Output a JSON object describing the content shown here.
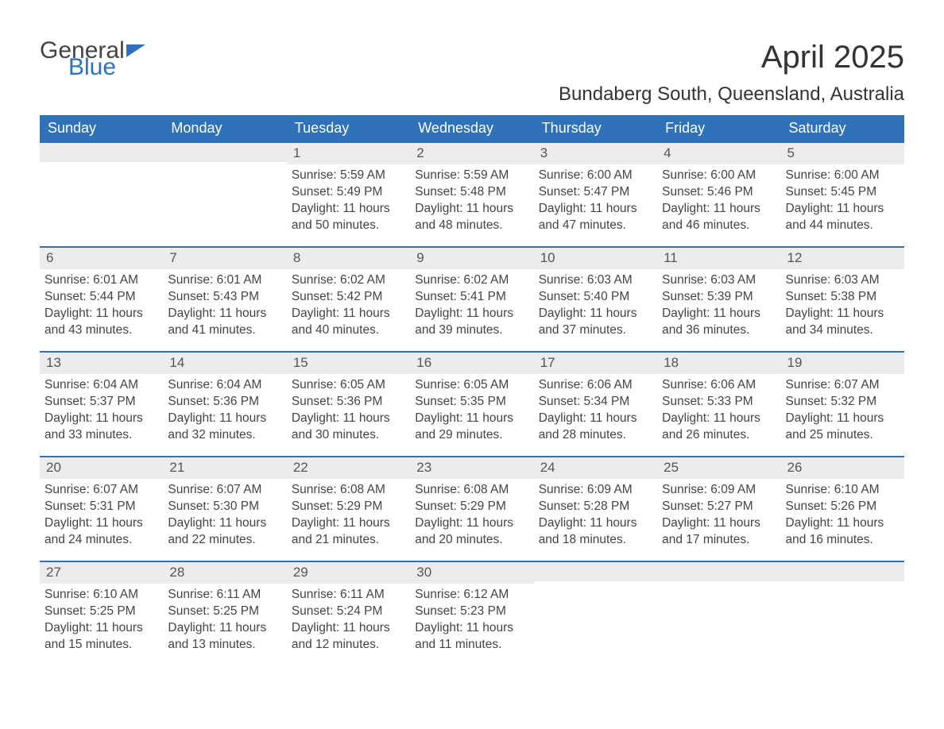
{
  "logo": {
    "text1": "General",
    "text2": "Blue"
  },
  "title": "April 2025",
  "location": "Bundaberg South, Queensland, Australia",
  "colors": {
    "header_bg": "#2f72b9",
    "header_fg": "#ffffff",
    "daynum_bg": "#ececec",
    "text": "#444444",
    "row_border": "#2f72b9",
    "page_bg": "#ffffff",
    "logo_blue": "#2f72b9"
  },
  "typography": {
    "title_fontsize_pt": 30,
    "location_fontsize_pt": 18,
    "weekday_fontsize_pt": 14,
    "body_fontsize_pt": 12,
    "daynum_fontsize_pt": 13
  },
  "weekdays": [
    "Sunday",
    "Monday",
    "Tuesday",
    "Wednesday",
    "Thursday",
    "Friday",
    "Saturday"
  ],
  "weeks": [
    [
      {
        "day": "",
        "sunrise": "",
        "sunset": "",
        "daylight": ""
      },
      {
        "day": "",
        "sunrise": "",
        "sunset": "",
        "daylight": ""
      },
      {
        "day": "1",
        "sunrise": "Sunrise: 5:59 AM",
        "sunset": "Sunset: 5:49 PM",
        "daylight": "Daylight: 11 hours and 50 minutes."
      },
      {
        "day": "2",
        "sunrise": "Sunrise: 5:59 AM",
        "sunset": "Sunset: 5:48 PM",
        "daylight": "Daylight: 11 hours and 48 minutes."
      },
      {
        "day": "3",
        "sunrise": "Sunrise: 6:00 AM",
        "sunset": "Sunset: 5:47 PM",
        "daylight": "Daylight: 11 hours and 47 minutes."
      },
      {
        "day": "4",
        "sunrise": "Sunrise: 6:00 AM",
        "sunset": "Sunset: 5:46 PM",
        "daylight": "Daylight: 11 hours and 46 minutes."
      },
      {
        "day": "5",
        "sunrise": "Sunrise: 6:00 AM",
        "sunset": "Sunset: 5:45 PM",
        "daylight": "Daylight: 11 hours and 44 minutes."
      }
    ],
    [
      {
        "day": "6",
        "sunrise": "Sunrise: 6:01 AM",
        "sunset": "Sunset: 5:44 PM",
        "daylight": "Daylight: 11 hours and 43 minutes."
      },
      {
        "day": "7",
        "sunrise": "Sunrise: 6:01 AM",
        "sunset": "Sunset: 5:43 PM",
        "daylight": "Daylight: 11 hours and 41 minutes."
      },
      {
        "day": "8",
        "sunrise": "Sunrise: 6:02 AM",
        "sunset": "Sunset: 5:42 PM",
        "daylight": "Daylight: 11 hours and 40 minutes."
      },
      {
        "day": "9",
        "sunrise": "Sunrise: 6:02 AM",
        "sunset": "Sunset: 5:41 PM",
        "daylight": "Daylight: 11 hours and 39 minutes."
      },
      {
        "day": "10",
        "sunrise": "Sunrise: 6:03 AM",
        "sunset": "Sunset: 5:40 PM",
        "daylight": "Daylight: 11 hours and 37 minutes."
      },
      {
        "day": "11",
        "sunrise": "Sunrise: 6:03 AM",
        "sunset": "Sunset: 5:39 PM",
        "daylight": "Daylight: 11 hours and 36 minutes."
      },
      {
        "day": "12",
        "sunrise": "Sunrise: 6:03 AM",
        "sunset": "Sunset: 5:38 PM",
        "daylight": "Daylight: 11 hours and 34 minutes."
      }
    ],
    [
      {
        "day": "13",
        "sunrise": "Sunrise: 6:04 AM",
        "sunset": "Sunset: 5:37 PM",
        "daylight": "Daylight: 11 hours and 33 minutes."
      },
      {
        "day": "14",
        "sunrise": "Sunrise: 6:04 AM",
        "sunset": "Sunset: 5:36 PM",
        "daylight": "Daylight: 11 hours and 32 minutes."
      },
      {
        "day": "15",
        "sunrise": "Sunrise: 6:05 AM",
        "sunset": "Sunset: 5:36 PM",
        "daylight": "Daylight: 11 hours and 30 minutes."
      },
      {
        "day": "16",
        "sunrise": "Sunrise: 6:05 AM",
        "sunset": "Sunset: 5:35 PM",
        "daylight": "Daylight: 11 hours and 29 minutes."
      },
      {
        "day": "17",
        "sunrise": "Sunrise: 6:06 AM",
        "sunset": "Sunset: 5:34 PM",
        "daylight": "Daylight: 11 hours and 28 minutes."
      },
      {
        "day": "18",
        "sunrise": "Sunrise: 6:06 AM",
        "sunset": "Sunset: 5:33 PM",
        "daylight": "Daylight: 11 hours and 26 minutes."
      },
      {
        "day": "19",
        "sunrise": "Sunrise: 6:07 AM",
        "sunset": "Sunset: 5:32 PM",
        "daylight": "Daylight: 11 hours and 25 minutes."
      }
    ],
    [
      {
        "day": "20",
        "sunrise": "Sunrise: 6:07 AM",
        "sunset": "Sunset: 5:31 PM",
        "daylight": "Daylight: 11 hours and 24 minutes."
      },
      {
        "day": "21",
        "sunrise": "Sunrise: 6:07 AM",
        "sunset": "Sunset: 5:30 PM",
        "daylight": "Daylight: 11 hours and 22 minutes."
      },
      {
        "day": "22",
        "sunrise": "Sunrise: 6:08 AM",
        "sunset": "Sunset: 5:29 PM",
        "daylight": "Daylight: 11 hours and 21 minutes."
      },
      {
        "day": "23",
        "sunrise": "Sunrise: 6:08 AM",
        "sunset": "Sunset: 5:29 PM",
        "daylight": "Daylight: 11 hours and 20 minutes."
      },
      {
        "day": "24",
        "sunrise": "Sunrise: 6:09 AM",
        "sunset": "Sunset: 5:28 PM",
        "daylight": "Daylight: 11 hours and 18 minutes."
      },
      {
        "day": "25",
        "sunrise": "Sunrise: 6:09 AM",
        "sunset": "Sunset: 5:27 PM",
        "daylight": "Daylight: 11 hours and 17 minutes."
      },
      {
        "day": "26",
        "sunrise": "Sunrise: 6:10 AM",
        "sunset": "Sunset: 5:26 PM",
        "daylight": "Daylight: 11 hours and 16 minutes."
      }
    ],
    [
      {
        "day": "27",
        "sunrise": "Sunrise: 6:10 AM",
        "sunset": "Sunset: 5:25 PM",
        "daylight": "Daylight: 11 hours and 15 minutes."
      },
      {
        "day": "28",
        "sunrise": "Sunrise: 6:11 AM",
        "sunset": "Sunset: 5:25 PM",
        "daylight": "Daylight: 11 hours and 13 minutes."
      },
      {
        "day": "29",
        "sunrise": "Sunrise: 6:11 AM",
        "sunset": "Sunset: 5:24 PM",
        "daylight": "Daylight: 11 hours and 12 minutes."
      },
      {
        "day": "30",
        "sunrise": "Sunrise: 6:12 AM",
        "sunset": "Sunset: 5:23 PM",
        "daylight": "Daylight: 11 hours and 11 minutes."
      },
      {
        "day": "",
        "sunrise": "",
        "sunset": "",
        "daylight": ""
      },
      {
        "day": "",
        "sunrise": "",
        "sunset": "",
        "daylight": ""
      },
      {
        "day": "",
        "sunrise": "",
        "sunset": "",
        "daylight": ""
      }
    ]
  ]
}
